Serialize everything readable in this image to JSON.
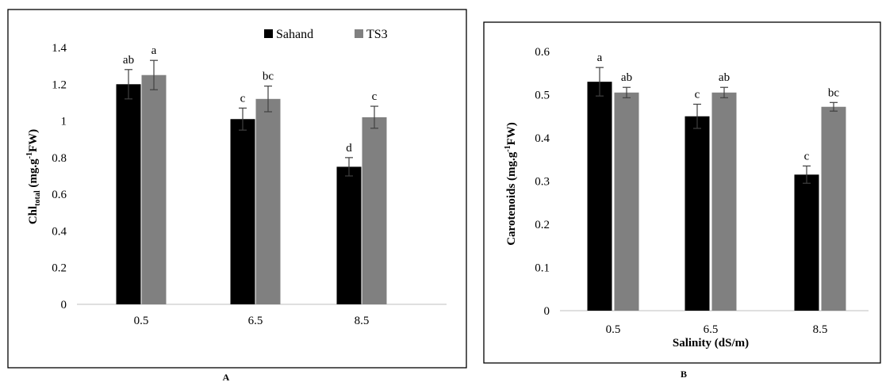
{
  "colors": {
    "sahand": "#000000",
    "ts3": "#808080",
    "error_bar": "#404040",
    "axis": "#bfbfbf",
    "frame": "#000000"
  },
  "chart_data": [
    {
      "type": "bar",
      "panel": "A",
      "categories": [
        "0.5",
        "6.5",
        "8.5"
      ],
      "ylabel_main": "Chl",
      "ylabel_sub": "total",
      "ylabel_rest": " (mg.g",
      "ylabel_sup": "-1",
      "ylabel_end": "FW)",
      "xlabel": "",
      "ylim": [
        0,
        1.4
      ],
      "yticks": [
        0,
        0.2,
        0.4,
        0.6,
        0.8,
        1,
        1.2,
        1.4
      ],
      "ytick_labels": [
        "0",
        "0.2",
        "0.4",
        "0.6",
        "0.8",
        "1",
        "1.2",
        "1.4"
      ],
      "legend": {
        "position": "top-right",
        "entries": [
          "Sahand",
          "TS3"
        ]
      },
      "series": [
        {
          "name": "Sahand",
          "values": [
            1.2,
            1.01,
            0.75
          ],
          "errors": [
            0.08,
            0.06,
            0.05
          ],
          "letters": [
            "ab",
            "c",
            "d"
          ]
        },
        {
          "name": "TS3",
          "values": [
            1.25,
            1.12,
            1.02
          ],
          "errors": [
            0.08,
            0.07,
            0.06
          ],
          "letters": [
            "a",
            "bc",
            "c"
          ]
        }
      ]
    },
    {
      "type": "bar",
      "panel": "B",
      "categories": [
        "0.5",
        "6.5",
        "8.5"
      ],
      "ylabel": "Carotenoids (mg.g",
      "ylabel_sup": "-1",
      "ylabel_end": "FW)",
      "xlabel": "Salinity (dS/m)",
      "ylim": [
        0,
        0.6
      ],
      "yticks": [
        0,
        0.1,
        0.2,
        0.3,
        0.4,
        0.5,
        0.6
      ],
      "ytick_labels": [
        "0",
        "0.1",
        "0.2",
        "0.3",
        "0.4",
        "0.5",
        "0.6"
      ],
      "series": [
        {
          "name": "Sahand",
          "values": [
            0.53,
            0.45,
            0.315
          ],
          "errors": [
            0.033,
            0.028,
            0.02
          ],
          "letters": [
            "a",
            "c",
            "c"
          ]
        },
        {
          "name": "TS3",
          "values": [
            0.505,
            0.505,
            0.472
          ],
          "errors": [
            0.012,
            0.012,
            0.01
          ],
          "letters": [
            "ab",
            "ab",
            "bc"
          ]
        }
      ]
    }
  ]
}
